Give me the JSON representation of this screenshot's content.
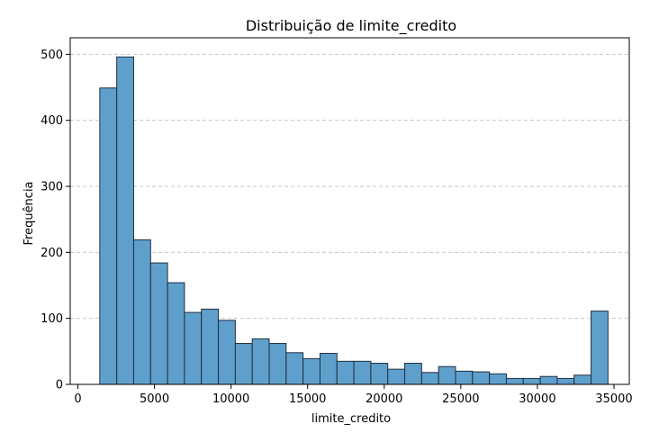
{
  "chart_data": {
    "type": "bar",
    "title": "Distribuição de limite_credito",
    "xlabel": "limite_credito",
    "ylabel": "Frequência",
    "xlim": [
      -500,
      36000
    ],
    "ylim": [
      0,
      525
    ],
    "xticks": [
      0,
      5000,
      10000,
      15000,
      20000,
      25000,
      30000,
      35000
    ],
    "yticks": [
      0,
      100,
      200,
      300,
      400,
      500
    ],
    "grid": "y-dashed",
    "bin_edges": [
      1430,
      2536,
      3642,
      4748,
      5854,
      6960,
      8066,
      9172,
      10278,
      11384,
      12490,
      13596,
      14702,
      15808,
      16914,
      18020,
      19126,
      20232,
      21338,
      22444,
      23550,
      24656,
      25762,
      26868,
      27974,
      29080,
      30186,
      31292,
      32398,
      33504,
      34610
    ],
    "values": [
      449,
      496,
      219,
      184,
      154,
      109,
      114,
      97,
      62,
      69,
      62,
      48,
      39,
      47,
      35,
      35,
      32,
      23,
      32,
      18,
      27,
      20,
      19,
      16,
      9,
      9,
      12,
      9,
      14,
      111
    ],
    "colors": {
      "bar": "#5f9fcc",
      "edge": "#1f2f3f",
      "grid": "#c7c7c7"
    }
  }
}
